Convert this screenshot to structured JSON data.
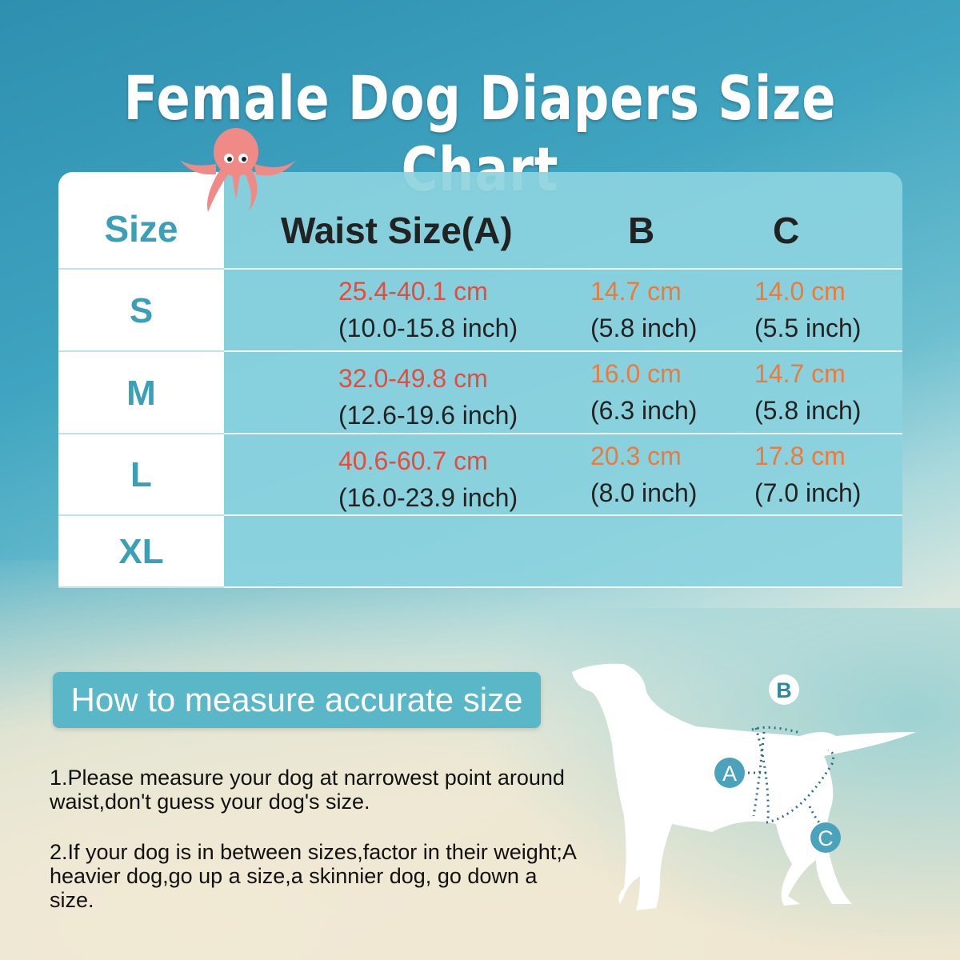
{
  "title": "Female Dog Diapers Size Chart",
  "table": {
    "headers": [
      "Size",
      "Waist Size(A)",
      "B",
      "C"
    ],
    "rows": [
      {
        "size": "S",
        "waist_cm": "25.4-40.1 cm",
        "waist_in": "(10.0-15.8 inch)",
        "b_cm": "14.7 cm",
        "b_in": "(5.8 inch)",
        "c_cm": "14.0 cm",
        "c_in": "(5.5 inch)"
      },
      {
        "size": "M",
        "waist_cm": "32.0-49.8 cm",
        "waist_in": "(12.6-19.6 inch)",
        "b_cm": "16.0 cm",
        "b_in": "(6.3 inch)",
        "c_cm": "14.7 cm",
        "c_in": "(5.8 inch)"
      },
      {
        "size": "L",
        "waist_cm": "40.6-60.7 cm",
        "waist_in": "(16.0-23.9 inch)",
        "b_cm": "20.3 cm",
        "b_in": "(8.0 inch)",
        "c_cm": "17.8 cm",
        "c_in": "(7.0 inch)"
      },
      {
        "size": "XL"
      }
    ]
  },
  "how_to": {
    "label": "How to measure accurate size",
    "steps": [
      "1.Please measure your dog at narrowest point around waist,don't guess your dog's size.",
      "2.If your dog is in between sizes,factor in their weight;A heavier dog,go up a size,a skinnier dog, go down a size."
    ]
  },
  "diagram": {
    "labels": [
      "A",
      "B",
      "C"
    ]
  },
  "colors": {
    "accent": "#5ab7c8",
    "cm_red": "#e84a3c",
    "cm_orange": "#ee7a3a"
  }
}
